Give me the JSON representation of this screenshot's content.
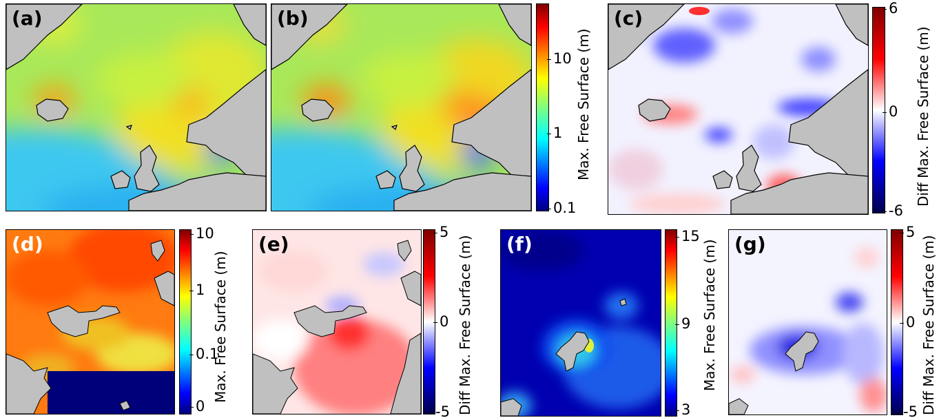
{
  "panels": {
    "a": {
      "label": "(a)"
    },
    "b": {
      "label": "(b)"
    },
    "c": {
      "label": "(c)"
    },
    "d": {
      "label": "(d)"
    },
    "e": {
      "label": "(e)"
    },
    "f": {
      "label": "(f)"
    },
    "g": {
      "label": "(g)"
    }
  },
  "colorbars": {
    "ab": {
      "title": "Max. Free Surface (m)",
      "ticks": [
        "10",
        "1",
        "0.1"
      ],
      "scale": "log",
      "colormap": "jet"
    },
    "c": {
      "title": "Diff Max. Free Surface (m)",
      "ticks": [
        "6",
        "0",
        "-6"
      ],
      "colormap": "seismic"
    },
    "d": {
      "title": "Max. Free Surface (m)",
      "ticks": [
        "10",
        "1",
        "0.1",
        "0"
      ],
      "scale": "log",
      "colormap": "jet"
    },
    "e": {
      "title": "Diff Max. Free Surface (m)",
      "ticks": [
        "5",
        "0",
        "-5"
      ],
      "colormap": "seismic"
    },
    "f": {
      "title": "Max. Free Surface (m)",
      "ticks": [
        "15",
        "9",
        "3"
      ],
      "colormap": "jet"
    },
    "g": {
      "title": "Diff Max. Free Surface (m)",
      "ticks": [
        "5",
        "0",
        "-5"
      ],
      "colormap": "seismic"
    }
  },
  "colors": {
    "land": "#c0c0c0",
    "coast": "#000000",
    "label_dark": "#000000",
    "label_light": "#ffffff"
  }
}
